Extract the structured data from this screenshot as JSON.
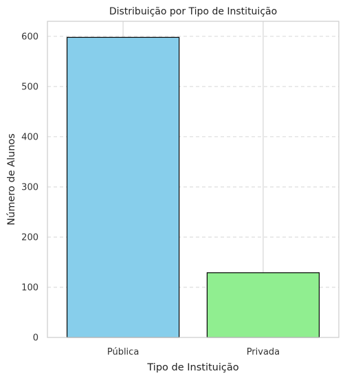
{
  "chart_data": {
    "type": "bar",
    "title": "Distribuição por Tipo de Instituição",
    "xlabel": "Tipo de Instituição",
    "ylabel": "Número de Alunos",
    "categories": [
      "Pública",
      "Privada"
    ],
    "values": [
      598,
      129
    ],
    "colors": [
      "#87CEEB",
      "#90EE90"
    ],
    "edge_color": "#000000",
    "ylim": [
      0,
      630
    ],
    "yticks": [
      0,
      100,
      200,
      300,
      400,
      500,
      600
    ],
    "grid": "y-dashed, x-solid"
  }
}
